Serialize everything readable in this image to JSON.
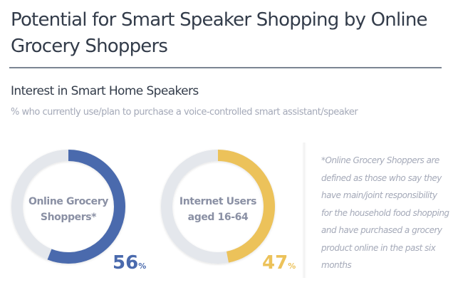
{
  "header": {
    "title": "Potential for Smart Speaker Shopping by Online Grocery Shoppers",
    "subtitle": "Interest in Smart Home Speakers",
    "description": "% who currently use/plan to purchase a voice-controlled smart assistant/speaker"
  },
  "footnote": "*Online Grocery Shoppers are defined as those who say they have main/joint responsibility for the household food shopping and have purchased a grocery product online in the past six months",
  "colors": {
    "blue": "#4a6aad",
    "yellow": "#ecc25a",
    "track": "#e4e7ec",
    "label": "#8a90a4"
  },
  "chart_data": {
    "type": "pie",
    "title": "Interest in Smart Home Speakers",
    "subtitle": "% who currently use/plan to purchase a voice-controlled smart assistant/speaker",
    "unit": "%",
    "series": [
      {
        "name_line1": "Online Grocery",
        "name_line2": "Shoppers*",
        "value": 56,
        "value_label": "56",
        "color": "#4a6aad"
      },
      {
        "name_line1": "Internet Users",
        "name_line2": "aged 16-64",
        "value": 47,
        "value_label": "47",
        "color": "#ecc25a"
      }
    ]
  }
}
